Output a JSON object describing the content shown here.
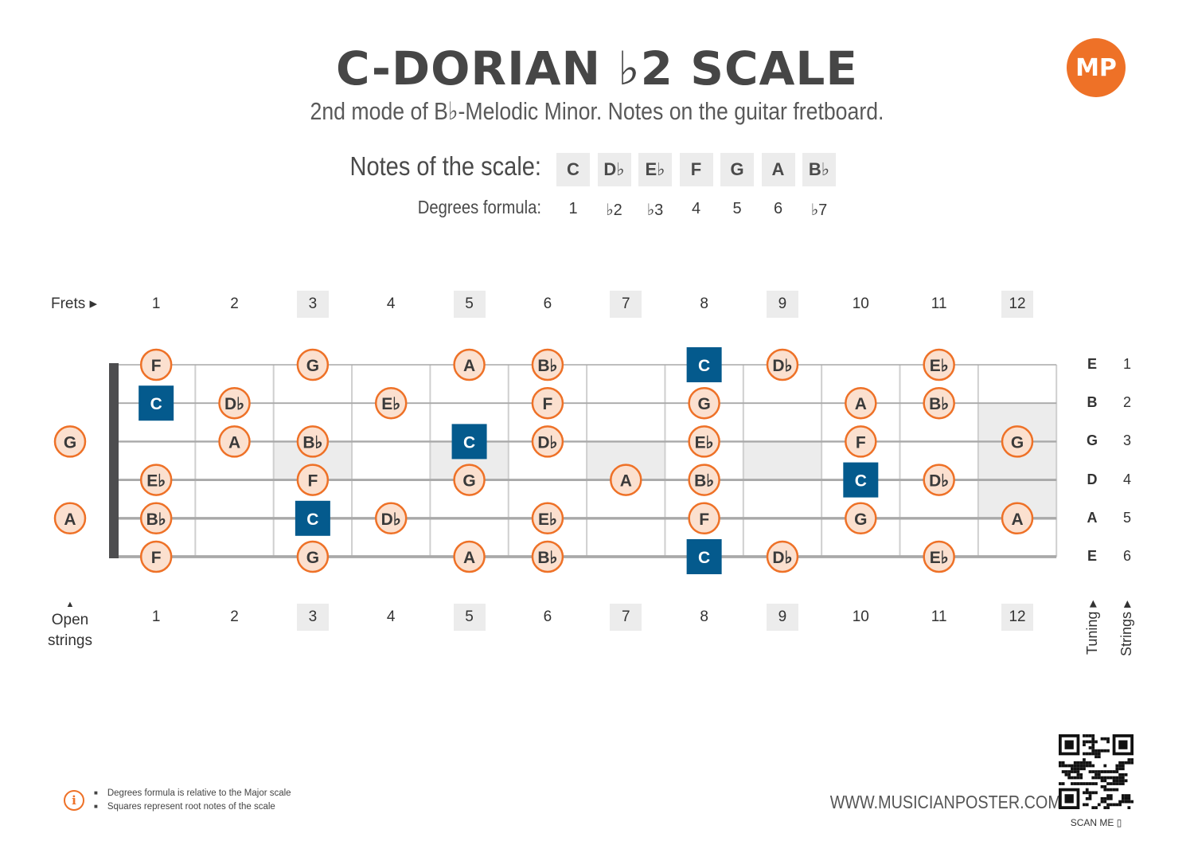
{
  "title": "C-DORIAN ♭2 SCALE",
  "subtitle": "2nd mode of B♭-Melodic Minor. Notes on the guitar fretboard.",
  "logo_text": "MP",
  "notes_label": "Notes of the scale:",
  "degrees_label": "Degrees formula:",
  "scale_notes": [
    "C",
    "D♭",
    "E♭",
    "F",
    "G",
    "A",
    "B♭"
  ],
  "degrees": [
    "1",
    "♭2",
    "♭3",
    "4",
    "5",
    "6",
    "♭7"
  ],
  "frets_label": "Frets ▸",
  "open_strings_label_1": "Open",
  "open_strings_label_2": "strings",
  "open_strings_arrow": "▲",
  "fret_numbers": [
    "1",
    "2",
    "3",
    "4",
    "5",
    "6",
    "7",
    "8",
    "9",
    "10",
    "11",
    "12"
  ],
  "tuning": [
    "E",
    "B",
    "G",
    "D",
    "A",
    "E"
  ],
  "string_numbers": [
    "1",
    "2",
    "3",
    "4",
    "5",
    "6"
  ],
  "tuning_label": "Tuning ▸",
  "strings_label": "Strings ▸",
  "colors": {
    "accent": "#ee7127",
    "root": "#045a8d",
    "note_fill": "#fbe0cf",
    "shade": "#ececec"
  },
  "open_notes": [
    {
      "string": 3,
      "note": "G"
    },
    {
      "string": 5,
      "note": "A"
    }
  ],
  "fretboard_notes": [
    {
      "string": 1,
      "fret": 1,
      "note": "F"
    },
    {
      "string": 1,
      "fret": 3,
      "note": "G"
    },
    {
      "string": 1,
      "fret": 5,
      "note": "A"
    },
    {
      "string": 1,
      "fret": 6,
      "note": "B♭"
    },
    {
      "string": 1,
      "fret": 8,
      "note": "C",
      "root": true
    },
    {
      "string": 1,
      "fret": 9,
      "note": "D♭"
    },
    {
      "string": 1,
      "fret": 11,
      "note": "E♭"
    },
    {
      "string": 2,
      "fret": 1,
      "note": "C",
      "root": true
    },
    {
      "string": 2,
      "fret": 2,
      "note": "D♭"
    },
    {
      "string": 2,
      "fret": 4,
      "note": "E♭"
    },
    {
      "string": 2,
      "fret": 6,
      "note": "F"
    },
    {
      "string": 2,
      "fret": 8,
      "note": "G"
    },
    {
      "string": 2,
      "fret": 10,
      "note": "A"
    },
    {
      "string": 2,
      "fret": 11,
      "note": "B♭"
    },
    {
      "string": 3,
      "fret": 2,
      "note": "A"
    },
    {
      "string": 3,
      "fret": 3,
      "note": "B♭"
    },
    {
      "string": 3,
      "fret": 5,
      "note": "C",
      "root": true
    },
    {
      "string": 3,
      "fret": 6,
      "note": "D♭"
    },
    {
      "string": 3,
      "fret": 8,
      "note": "E♭"
    },
    {
      "string": 3,
      "fret": 10,
      "note": "F"
    },
    {
      "string": 3,
      "fret": 12,
      "note": "G"
    },
    {
      "string": 4,
      "fret": 1,
      "note": "E♭"
    },
    {
      "string": 4,
      "fret": 3,
      "note": "F"
    },
    {
      "string": 4,
      "fret": 5,
      "note": "G"
    },
    {
      "string": 4,
      "fret": 7,
      "note": "A"
    },
    {
      "string": 4,
      "fret": 8,
      "note": "B♭"
    },
    {
      "string": 4,
      "fret": 10,
      "note": "C",
      "root": true
    },
    {
      "string": 4,
      "fret": 11,
      "note": "D♭"
    },
    {
      "string": 5,
      "fret": 1,
      "note": "B♭"
    },
    {
      "string": 5,
      "fret": 3,
      "note": "C",
      "root": true
    },
    {
      "string": 5,
      "fret": 4,
      "note": "D♭"
    },
    {
      "string": 5,
      "fret": 6,
      "note": "E♭"
    },
    {
      "string": 5,
      "fret": 8,
      "note": "F"
    },
    {
      "string": 5,
      "fret": 10,
      "note": "G"
    },
    {
      "string": 5,
      "fret": 12,
      "note": "A"
    },
    {
      "string": 6,
      "fret": 1,
      "note": "F"
    },
    {
      "string": 6,
      "fret": 3,
      "note": "G"
    },
    {
      "string": 6,
      "fret": 5,
      "note": "A"
    },
    {
      "string": 6,
      "fret": 6,
      "note": "B♭"
    },
    {
      "string": 6,
      "fret": 8,
      "note": "C",
      "root": true
    },
    {
      "string": 6,
      "fret": 9,
      "note": "D♭"
    },
    {
      "string": 6,
      "fret": 11,
      "note": "E♭"
    }
  ],
  "footer_notes": [
    "Degrees formula is relative to the Major scale",
    "Squares represent root notes of the scale"
  ],
  "info_icon": "info-icon",
  "website": "WWW.MUSICIANPOSTER.COM",
  "scan_me": "SCAN ME ▯"
}
